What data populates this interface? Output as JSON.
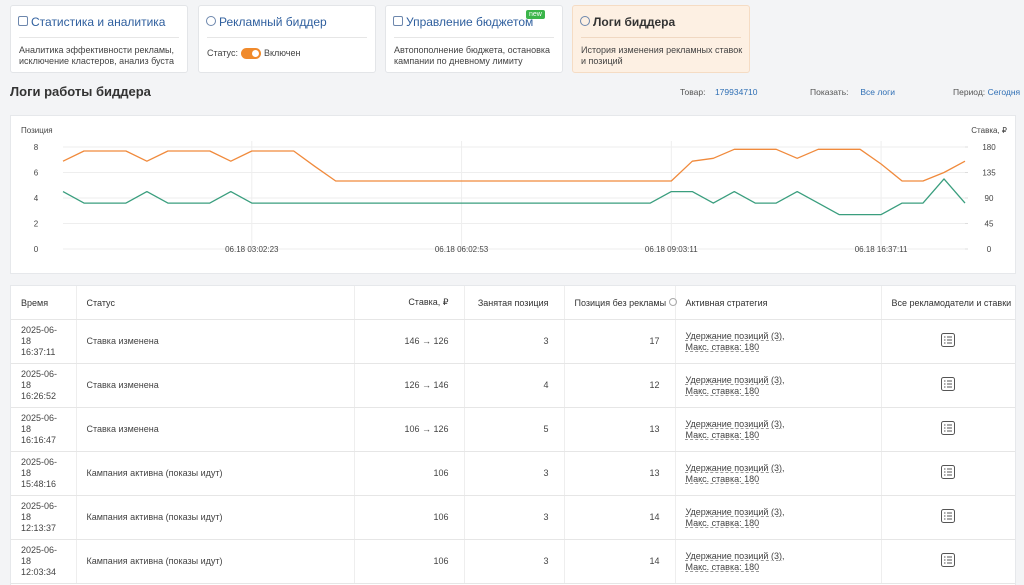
{
  "cards": [
    {
      "title": "Статистика и аналитика",
      "description": "Аналитика эффективности рекламы, исключение кластеров, анализ буста"
    },
    {
      "title": "Рекламный биддер",
      "status_label": "Статус:",
      "status": "Включен"
    },
    {
      "title": "Управление бюджетом",
      "badge": "new",
      "description": "Автопополнение бюджета, остановка кампании по дневному лимиту"
    },
    {
      "title": "Логи биддера",
      "description": "История изменения рекламных ставок и позиций"
    }
  ],
  "header": {
    "title": "Логи работы биддера",
    "product_label": "Товар:",
    "product": "179934710",
    "show_label": "Показать:",
    "show": "Все логи",
    "period_label": "Период:",
    "period": "Сегодня"
  },
  "chart_data": {
    "type": "line",
    "ylabel": "Позиция",
    "y2label": "Ставка, ₽",
    "categories": [
      null,
      null,
      null,
      null,
      null,
      null,
      null,
      null,
      null,
      "06.18 03:02:23",
      null,
      null,
      null,
      null,
      null,
      null,
      null,
      null,
      null,
      "06.18 06:02:53",
      null,
      null,
      null,
      null,
      null,
      null,
      null,
      null,
      null,
      "06.18 09:03:11",
      null,
      null,
      null,
      null,
      null,
      null,
      null,
      null,
      null,
      "06.18 16:37:11",
      null,
      null,
      null,
      null
    ],
    "series": [
      {
        "name": "Ставка",
        "color": "#f08a3c",
        "axis": "y2",
        "values": [
          155,
          173,
          173,
          173,
          155,
          173,
          173,
          173,
          155,
          173,
          173,
          173,
          146,
          120,
          120,
          120,
          120,
          120,
          120,
          120,
          120,
          120,
          120,
          120,
          120,
          120,
          120,
          120,
          120,
          120,
          155,
          160,
          176,
          176,
          176,
          160,
          176,
          176,
          176,
          150,
          120,
          120,
          135,
          155
        ]
      },
      {
        "name": "Позиция",
        "color": "#3a9e7e",
        "values": [
          4.5,
          3.6,
          3.6,
          3.6,
          4.5,
          3.6,
          3.6,
          3.6,
          4.5,
          3.6,
          3.6,
          3.6,
          3.6,
          3.6,
          3.6,
          3.6,
          3.6,
          3.6,
          3.6,
          3.6,
          3.6,
          3.6,
          3.6,
          3.6,
          3.6,
          3.6,
          3.6,
          3.6,
          3.6,
          4.5,
          4.5,
          3.6,
          4.5,
          3.6,
          3.6,
          4.5,
          3.6,
          2.7,
          2.7,
          2.7,
          3.6,
          3.6,
          5.5,
          3.6
        ]
      }
    ],
    "ylim": [
      0,
      8
    ],
    "yticks": [
      0,
      2,
      4,
      6,
      8
    ],
    "y2lim": [
      0,
      180
    ],
    "y2ticks": [
      0,
      45,
      90,
      135,
      180
    ],
    "grid": true
  },
  "table": {
    "columns": [
      "Время",
      "Статус",
      "Ставка, ₽",
      "Занятая позиция",
      "Позиция без рекламы",
      "Активная стратегия",
      "Все рекламодатели и ставки"
    ],
    "rows": [
      [
        "2025-06-18",
        "16:37:11",
        "Ставка изменена",
        "146 → 126",
        "3",
        "17",
        "Удержание позиций (3),",
        "Макс. ставка: 180"
      ],
      [
        "2025-06-18",
        "16:26:52",
        "Ставка изменена",
        "126 → 146",
        "4",
        "12",
        "Удержание позиций (3),",
        "Макс. ставка: 180"
      ],
      [
        "2025-06-18",
        "16:16:47",
        "Ставка изменена",
        "106 → 126",
        "5",
        "13",
        "Удержание позиций (3),",
        "Макс. ставка: 180"
      ],
      [
        "2025-06-18",
        "15:48:16",
        "Кампания активна (показы идут)",
        "106",
        "3",
        "13",
        "Удержание позиций (3),",
        "Макс. ставка: 180"
      ],
      [
        "2025-06-18",
        "12:13:37",
        "Кампания активна (показы идут)",
        "106",
        "3",
        "14",
        "Удержание позиций (3),",
        "Макс. ставка: 180"
      ],
      [
        "2025-06-18",
        "12:03:34",
        "Кампания активна (показы идут)",
        "106",
        "3",
        "14",
        "Удержание позиций (3),",
        "Макс. ставка: 180"
      ]
    ]
  }
}
